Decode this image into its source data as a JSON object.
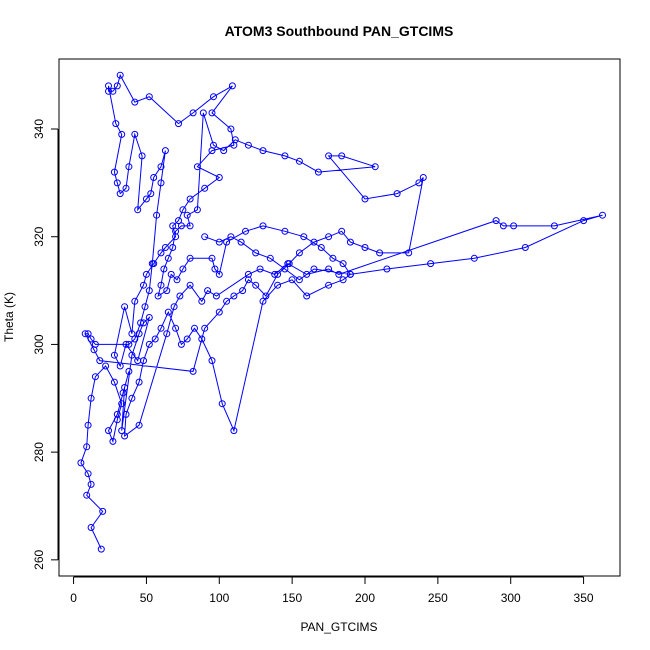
{
  "chart_data": {
    "type": "scatter",
    "title": "ATOM3 Southbound PAN_GTCIMS",
    "xlabel": "PAN_GTCIMS",
    "ylabel": "Theta (K)",
    "xlim": [
      -10,
      375
    ],
    "ylim": [
      257,
      353
    ],
    "x_ticks": [
      0,
      50,
      100,
      150,
      200,
      250,
      300,
      350
    ],
    "y_ticks": [
      260,
      280,
      300,
      320,
      340
    ],
    "grid": false,
    "legend": "none",
    "series": [
      {
        "color": "#0000ff",
        "marker": "open-circle",
        "connected": true,
        "points": [
          [
            19,
            262
          ],
          [
            12,
            266
          ],
          [
            20,
            269
          ],
          [
            9,
            272
          ],
          [
            12,
            274
          ],
          [
            10,
            276
          ],
          [
            5,
            278
          ],
          [
            9,
            281
          ],
          [
            10,
            285
          ],
          [
            12,
            290
          ],
          [
            15,
            294
          ],
          [
            22,
            296
          ],
          [
            28,
            293
          ],
          [
            33,
            289
          ],
          [
            30,
            286
          ],
          [
            27,
            282
          ],
          [
            24,
            284
          ],
          [
            30,
            287
          ],
          [
            34,
            291
          ],
          [
            38,
            295
          ],
          [
            35,
            292
          ],
          [
            33,
            284
          ],
          [
            40,
            298
          ],
          [
            45,
            302
          ],
          [
            48,
            304
          ],
          [
            52,
            305
          ],
          [
            44,
            297
          ],
          [
            36,
            300
          ],
          [
            32,
            296
          ],
          [
            28,
            298
          ],
          [
            35,
            307
          ],
          [
            40,
            302
          ],
          [
            42,
            308
          ],
          [
            48,
            311
          ],
          [
            50,
            313
          ],
          [
            55,
            315
          ],
          [
            60,
            317
          ],
          [
            63,
            318
          ],
          [
            70,
            320
          ],
          [
            68,
            322
          ],
          [
            72,
            323
          ],
          [
            75,
            325
          ],
          [
            80,
            327
          ],
          [
            90,
            329
          ],
          [
            100,
            331
          ],
          [
            85,
            333
          ],
          [
            95,
            336
          ],
          [
            110,
            337
          ],
          [
            108,
            340
          ],
          [
            95,
            343
          ],
          [
            109,
            348
          ],
          [
            96,
            346
          ],
          [
            82,
            343
          ],
          [
            72,
            341
          ],
          [
            52,
            346
          ],
          [
            42,
            345
          ],
          [
            32,
            350
          ],
          [
            30,
            348
          ],
          [
            27,
            347
          ],
          [
            24,
            347
          ],
          [
            24,
            348
          ],
          [
            29,
            341
          ],
          [
            33,
            339
          ],
          [
            28,
            332
          ],
          [
            30,
            330
          ],
          [
            32,
            328
          ],
          [
            36,
            329
          ],
          [
            38,
            333
          ],
          [
            42,
            339
          ],
          [
            47,
            335
          ],
          [
            44,
            325
          ],
          [
            50,
            327
          ],
          [
            53,
            328
          ],
          [
            55,
            331
          ],
          [
            60,
            333
          ],
          [
            63,
            336
          ],
          [
            60,
            330
          ],
          [
            57,
            324
          ],
          [
            54,
            315
          ],
          [
            52,
            310
          ],
          [
            49,
            307
          ],
          [
            46,
            304
          ],
          [
            42,
            301
          ],
          [
            38,
            300
          ],
          [
            15,
            300
          ],
          [
            12,
            301
          ],
          [
            10,
            302
          ],
          [
            8,
            302
          ],
          [
            14,
            299
          ],
          [
            18,
            297
          ],
          [
            82,
            295
          ],
          [
            90,
            303
          ],
          [
            100,
            306
          ],
          [
            105,
            308
          ],
          [
            110,
            309
          ],
          [
            116,
            310
          ],
          [
            120,
            312
          ],
          [
            125,
            311
          ],
          [
            132,
            309
          ],
          [
            140,
            313
          ],
          [
            148,
            315
          ],
          [
            155,
            317
          ],
          [
            165,
            319
          ],
          [
            175,
            320
          ],
          [
            184,
            321
          ],
          [
            190,
            319
          ],
          [
            200,
            318
          ],
          [
            210,
            317
          ],
          [
            230,
            317
          ],
          [
            240,
            331
          ],
          [
            237,
            330
          ],
          [
            222,
            328
          ],
          [
            200,
            327
          ],
          [
            175,
            335
          ],
          [
            184,
            335
          ],
          [
            207,
            333
          ],
          [
            168,
            332
          ],
          [
            155,
            334
          ],
          [
            145,
            335
          ],
          [
            130,
            336
          ],
          [
            120,
            337
          ],
          [
            111,
            338
          ],
          [
            103,
            336
          ],
          [
            96,
            337
          ],
          [
            89,
            343
          ],
          [
            85,
            325
          ],
          [
            78,
            324
          ],
          [
            80,
            322
          ],
          [
            74,
            322
          ],
          [
            70,
            321
          ],
          [
            68,
            318
          ],
          [
            65,
            316
          ],
          [
            62,
            314
          ],
          [
            60,
            311
          ],
          [
            58,
            309
          ],
          [
            64,
            310
          ],
          [
            67,
            313
          ],
          [
            71,
            312
          ],
          [
            75,
            314
          ],
          [
            80,
            316
          ],
          [
            95,
            316
          ],
          [
            97,
            314
          ],
          [
            100,
            313
          ],
          [
            105,
            319
          ],
          [
            118,
            321
          ],
          [
            130,
            322
          ],
          [
            145,
            321
          ],
          [
            158,
            320
          ],
          [
            170,
            318
          ],
          [
            178,
            316
          ],
          [
            185,
            315
          ],
          [
            190,
            313
          ],
          [
            185,
            312
          ],
          [
            175,
            311
          ],
          [
            160,
            309
          ],
          [
            150,
            312
          ],
          [
            140,
            311
          ],
          [
            130,
            308
          ],
          [
            110,
            284
          ],
          [
            102,
            289
          ],
          [
            95,
            297
          ],
          [
            88,
            301
          ],
          [
            83,
            303
          ],
          [
            78,
            301
          ],
          [
            74,
            300
          ],
          [
            70,
            303
          ],
          [
            65,
            306
          ],
          [
            60,
            303
          ],
          [
            56,
            301
          ],
          [
            52,
            300
          ],
          [
            48,
            297
          ],
          [
            45,
            293
          ],
          [
            40,
            290
          ],
          [
            36,
            287
          ],
          [
            35,
            283
          ],
          [
            45,
            285
          ],
          [
            64,
            302
          ],
          [
            69,
            307
          ],
          [
            73,
            309
          ],
          [
            80,
            311
          ],
          [
            88,
            308
          ],
          [
            92,
            310
          ],
          [
            98,
            309
          ],
          [
            120,
            313
          ],
          [
            128,
            314
          ],
          [
            138,
            313
          ],
          [
            147,
            315
          ],
          [
            160,
            313
          ],
          [
            175,
            314
          ],
          [
            182,
            313
          ],
          [
            290,
            323
          ],
          [
            295,
            322
          ],
          [
            302,
            322
          ],
          [
            330,
            322
          ],
          [
            363,
            324
          ],
          [
            350,
            323
          ],
          [
            310,
            318
          ],
          [
            275,
            316
          ],
          [
            245,
            315
          ],
          [
            215,
            314
          ],
          [
            190,
            313
          ],
          [
            165,
            314
          ],
          [
            155,
            312
          ],
          [
            145,
            314
          ],
          [
            135,
            316
          ],
          [
            125,
            317
          ],
          [
            115,
            319
          ],
          [
            108,
            320
          ],
          [
            100,
            319
          ],
          [
            90,
            320
          ]
        ]
      }
    ]
  }
}
